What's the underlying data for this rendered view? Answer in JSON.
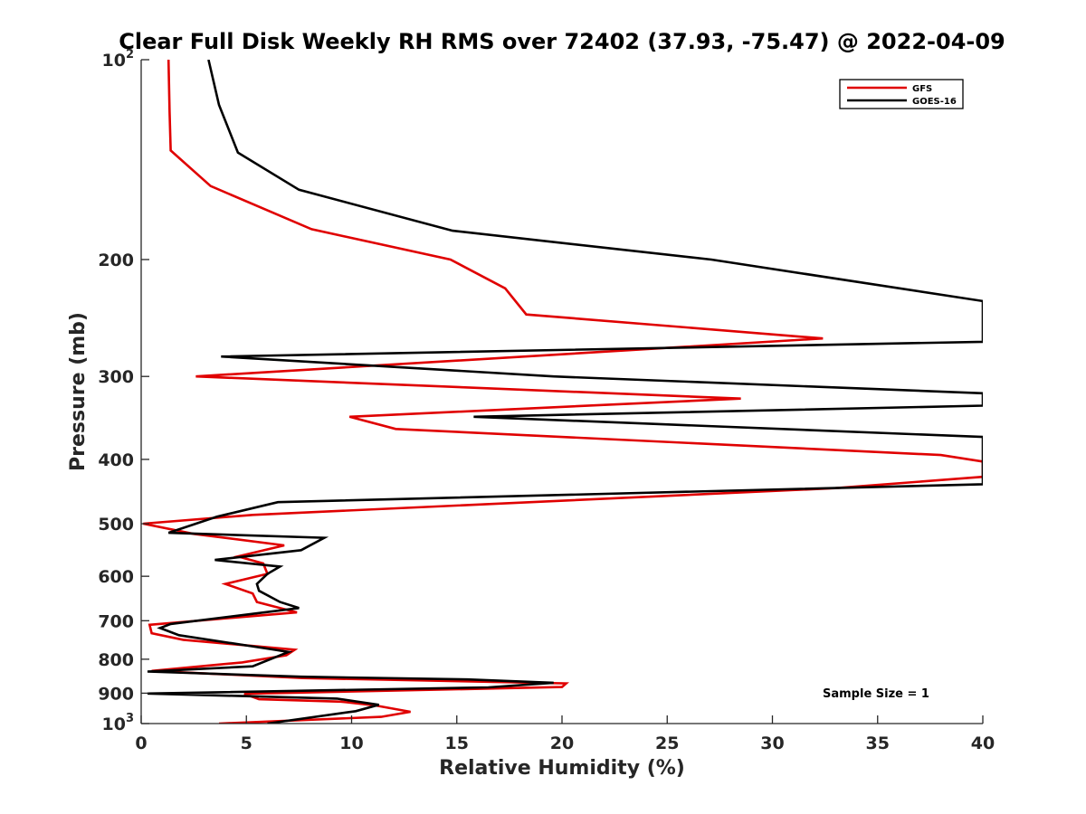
{
  "chart_data": {
    "type": "line",
    "title": "Clear Full Disk Weekly RH RMS over 72402 (37.93, -75.47) @ 2022-04-09",
    "xlabel": "Relative Humidity (%)",
    "ylabel": "Pressure (mb)",
    "xlim": [
      0,
      40
    ],
    "ylim": [
      100,
      1000
    ],
    "yscale": "log",
    "y_reversed": true,
    "x_ticks": [
      0,
      5,
      10,
      15,
      20,
      25,
      30,
      35,
      40
    ],
    "x_tick_labels": [
      "0",
      "5",
      "10",
      "15",
      "20",
      "25",
      "30",
      "35",
      "40"
    ],
    "y_ticks": [
      100,
      200,
      300,
      400,
      500,
      600,
      700,
      800,
      900,
      1000
    ],
    "y_tick_labels": [
      {
        "base": "10",
        "exp": "2"
      },
      {
        "base": "200",
        "exp": ""
      },
      {
        "base": "300",
        "exp": ""
      },
      {
        "base": "400",
        "exp": ""
      },
      {
        "base": "500",
        "exp": ""
      },
      {
        "base": "600",
        "exp": ""
      },
      {
        "base": "700",
        "exp": ""
      },
      {
        "base": "800",
        "exp": ""
      },
      {
        "base": "900",
        "exp": ""
      },
      {
        "base": "10",
        "exp": "3"
      }
    ],
    "legend_position": "top-right",
    "annotation": "Sample Size = 1",
    "series": [
      {
        "name": "GFS",
        "color": "#e00000",
        "points": [
          [
            1.3,
            100
          ],
          [
            1.35,
            120
          ],
          [
            1.4,
            137
          ],
          [
            3.3,
            155
          ],
          [
            8.1,
            180
          ],
          [
            14.7,
            200
          ],
          [
            17.3,
            221
          ],
          [
            18.3,
            242
          ],
          [
            32.4,
            263
          ],
          [
            2.6,
            300
          ],
          [
            28.5,
            324
          ],
          [
            9.9,
            345
          ],
          [
            12.1,
            360
          ],
          [
            38.0,
            394
          ],
          [
            40.0,
            403
          ],
          [
            40.0,
            425
          ],
          [
            33.0,
            442
          ],
          [
            5.3,
            485
          ],
          [
            0.1,
            500
          ],
          [
            2.5,
            518
          ],
          [
            6.8,
            539
          ],
          [
            4.6,
            560
          ],
          [
            5.8,
            574
          ],
          [
            6.0,
            595
          ],
          [
            4.0,
            616
          ],
          [
            5.3,
            637
          ],
          [
            5.5,
            656
          ],
          [
            7.4,
            680
          ],
          [
            0.4,
            710
          ],
          [
            0.5,
            731
          ],
          [
            2.0,
            748
          ],
          [
            7.3,
            774
          ],
          [
            6.9,
            789
          ],
          [
            4.8,
            809
          ],
          [
            0.5,
            833
          ],
          [
            7.7,
            854
          ],
          [
            20.2,
            870
          ],
          [
            20.0,
            881
          ],
          [
            4.9,
            902
          ],
          [
            5.6,
            919
          ],
          [
            9.5,
            927
          ],
          [
            11.1,
            939
          ],
          [
            12.8,
            960
          ],
          [
            11.4,
            977
          ],
          [
            3.7,
            1000
          ]
        ]
      },
      {
        "name": "GOES-16",
        "color": "#000000",
        "points": [
          [
            3.2,
            100
          ],
          [
            3.7,
            117
          ],
          [
            4.6,
            138
          ],
          [
            7.5,
            157
          ],
          [
            14.8,
            181
          ],
          [
            27.1,
            200
          ],
          [
            40.0,
            231
          ],
          [
            40.0,
            266
          ],
          [
            3.8,
            280
          ],
          [
            19.6,
            300
          ],
          [
            40.0,
            318
          ],
          [
            40.0,
            332
          ],
          [
            15.8,
            345
          ],
          [
            40.0,
            370
          ],
          [
            40.0,
            389
          ],
          [
            40.0,
            436
          ],
          [
            6.5,
            464
          ],
          [
            3.6,
            488
          ],
          [
            1.3,
            516
          ],
          [
            8.7,
            525
          ],
          [
            7.6,
            548
          ],
          [
            3.5,
            567
          ],
          [
            6.6,
            580
          ],
          [
            6.0,
            595
          ],
          [
            5.5,
            616
          ],
          [
            5.6,
            631
          ],
          [
            6.6,
            656
          ],
          [
            7.5,
            670
          ],
          [
            1.4,
            708
          ],
          [
            0.9,
            718
          ],
          [
            1.8,
            736
          ],
          [
            6.2,
            773
          ],
          [
            7.0,
            780
          ],
          [
            5.3,
            820
          ],
          [
            0.3,
            835
          ],
          [
            7.6,
            850
          ],
          [
            15.5,
            858
          ],
          [
            19.6,
            868
          ],
          [
            16.5,
            882
          ],
          [
            0.3,
            901
          ],
          [
            9.3,
            917
          ],
          [
            11.3,
            937
          ],
          [
            10.2,
            958
          ],
          [
            6.0,
            1000
          ]
        ]
      }
    ]
  }
}
